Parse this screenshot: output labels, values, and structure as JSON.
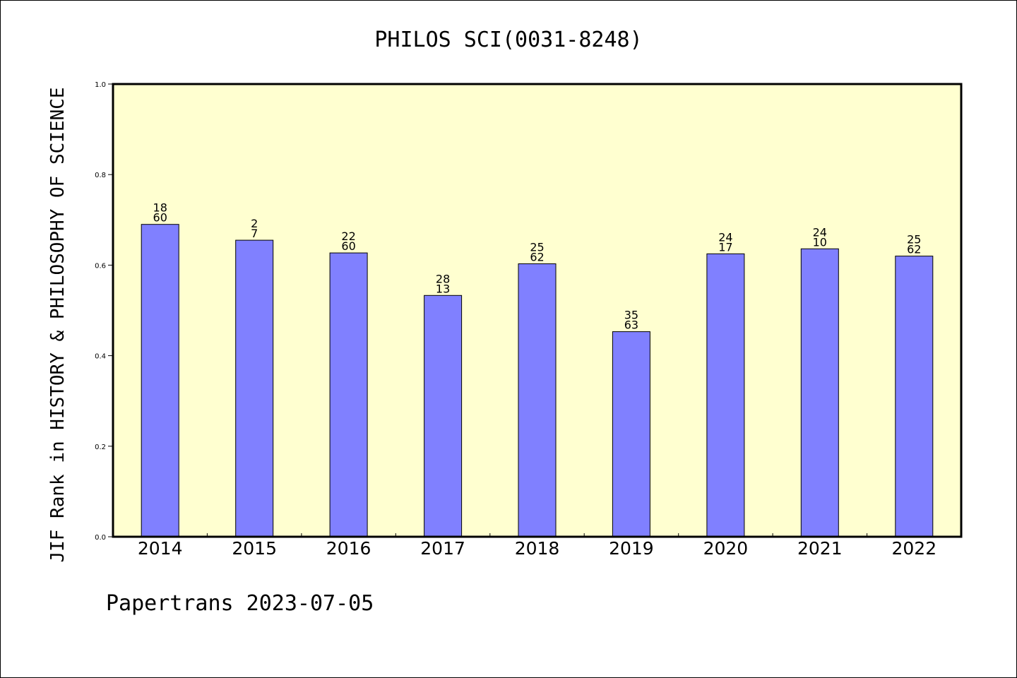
{
  "footer": "Papertrans 2023-07-05",
  "colors": {
    "plot_background": "#ffffd0",
    "bar_fill": "#8080ff",
    "bar_stroke": "#000000"
  },
  "chart_data": {
    "type": "bar",
    "title": "PHILOS SCI(0031-8248)",
    "xlabel": "",
    "ylabel": "JIF Rank in HISTORY & PHILOSOPHY OF SCIENCE",
    "ylim": [
      0,
      1.0
    ],
    "yticks": [
      "0.0",
      "0.2",
      "0.4",
      "0.6",
      "0.8",
      "1.0"
    ],
    "grid": false,
    "categories": [
      "2014",
      "2015",
      "2016",
      "2017",
      "2018",
      "2019",
      "2020",
      "2021",
      "2022"
    ],
    "values": [
      0.69,
      0.655,
      0.627,
      0.533,
      0.603,
      0.453,
      0.625,
      0.636,
      0.62
    ],
    "labels": [
      [
        "18",
        "60"
      ],
      [
        "2",
        "7"
      ],
      [
        "22",
        "60"
      ],
      [
        "28",
        "13"
      ],
      [
        "25",
        "62"
      ],
      [
        "35",
        "63"
      ],
      [
        "24",
        "17"
      ],
      [
        "24",
        "10"
      ],
      [
        "25",
        "62"
      ]
    ]
  }
}
